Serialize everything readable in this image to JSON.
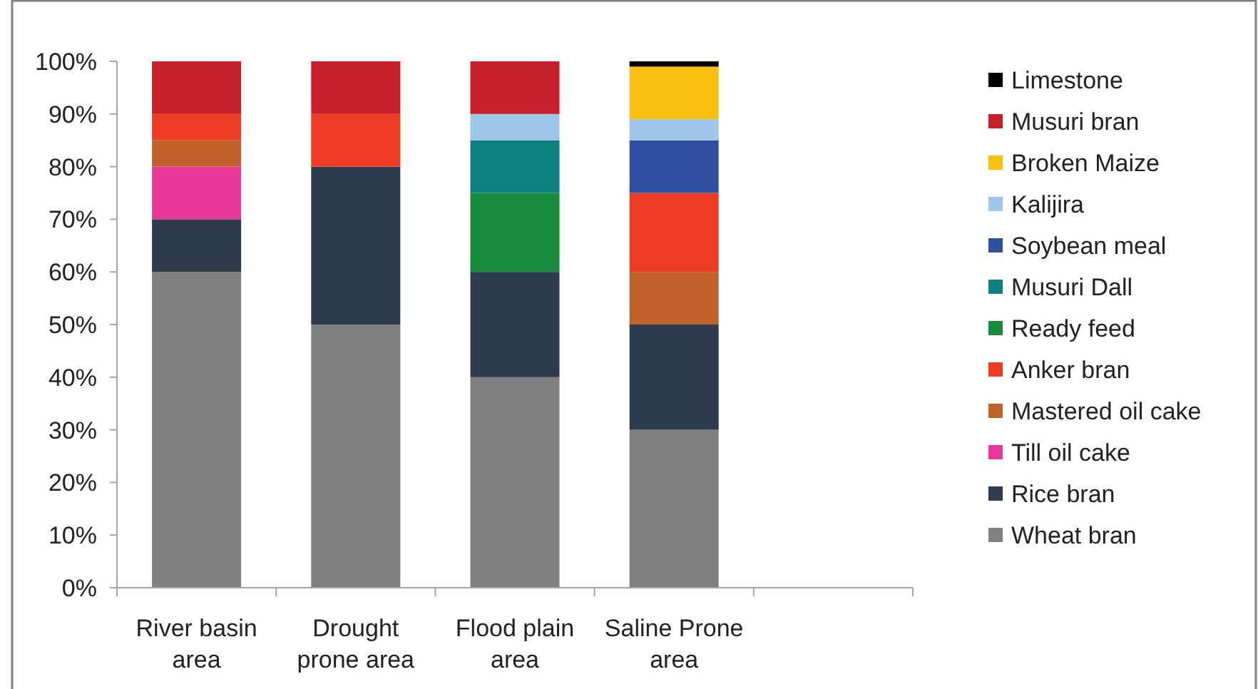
{
  "chart_data": {
    "type": "bar",
    "stacked": true,
    "categories": [
      "River basin area",
      "Drought prone area",
      "Flood plain area",
      "Saline Prone area",
      null
    ],
    "ylim": [
      0,
      100
    ],
    "yticks": [
      {
        "value": 0,
        "label": "0%"
      },
      {
        "value": 10,
        "label": "10%"
      },
      {
        "value": 20,
        "label": "20%"
      },
      {
        "value": 30,
        "label": "30%"
      },
      {
        "value": 40,
        "label": "40%"
      },
      {
        "value": 50,
        "label": "50%"
      },
      {
        "value": 60,
        "label": "60%"
      },
      {
        "value": 70,
        "label": "70%"
      },
      {
        "value": 80,
        "label": "80%"
      },
      {
        "value": 90,
        "label": "90%"
      },
      {
        "value": 100,
        "label": "100%"
      }
    ],
    "grid": false,
    "legend": "right",
    "series": [
      {
        "name": "Wheat bran",
        "color": "#808080",
        "values": [
          60,
          50,
          40,
          30,
          null
        ]
      },
      {
        "name": "Rice bran",
        "color": "#2e3a4d",
        "values": [
          10,
          30,
          20,
          20,
          null
        ]
      },
      {
        "name": "Till oil cake",
        "color": "#e8399a",
        "values": [
          10,
          0,
          0,
          0,
          null
        ]
      },
      {
        "name": "Mastered oil cake",
        "color": "#c0622a",
        "values": [
          5,
          0,
          0,
          10,
          null
        ]
      },
      {
        "name": "Anker bran",
        "color": "#ee3b24",
        "values": [
          5,
          10,
          0,
          15,
          null
        ]
      },
      {
        "name": "Ready feed",
        "color": "#178a3c",
        "values": [
          0,
          0,
          15,
          0,
          null
        ]
      },
      {
        "name": "Musuri Dall",
        "color": "#0e8080",
        "values": [
          0,
          0,
          10,
          0,
          null
        ]
      },
      {
        "name": "Soybean meal",
        "color": "#2f4fa0",
        "values": [
          0,
          0,
          0,
          10,
          null
        ]
      },
      {
        "name": "Kalijira",
        "color": "#9dc6e8",
        "values": [
          0,
          0,
          5,
          4,
          null
        ]
      },
      {
        "name": "Broken Maize",
        "color": "#fbbf10",
        "values": [
          0,
          0,
          0,
          10,
          null
        ]
      },
      {
        "name": "Musuri bran",
        "color": "#c8202b",
        "values": [
          10,
          10,
          10,
          0,
          null
        ]
      },
      {
        "name": "Limestone",
        "color": "#000000",
        "values": [
          0,
          0,
          0,
          1,
          null
        ]
      }
    ]
  }
}
